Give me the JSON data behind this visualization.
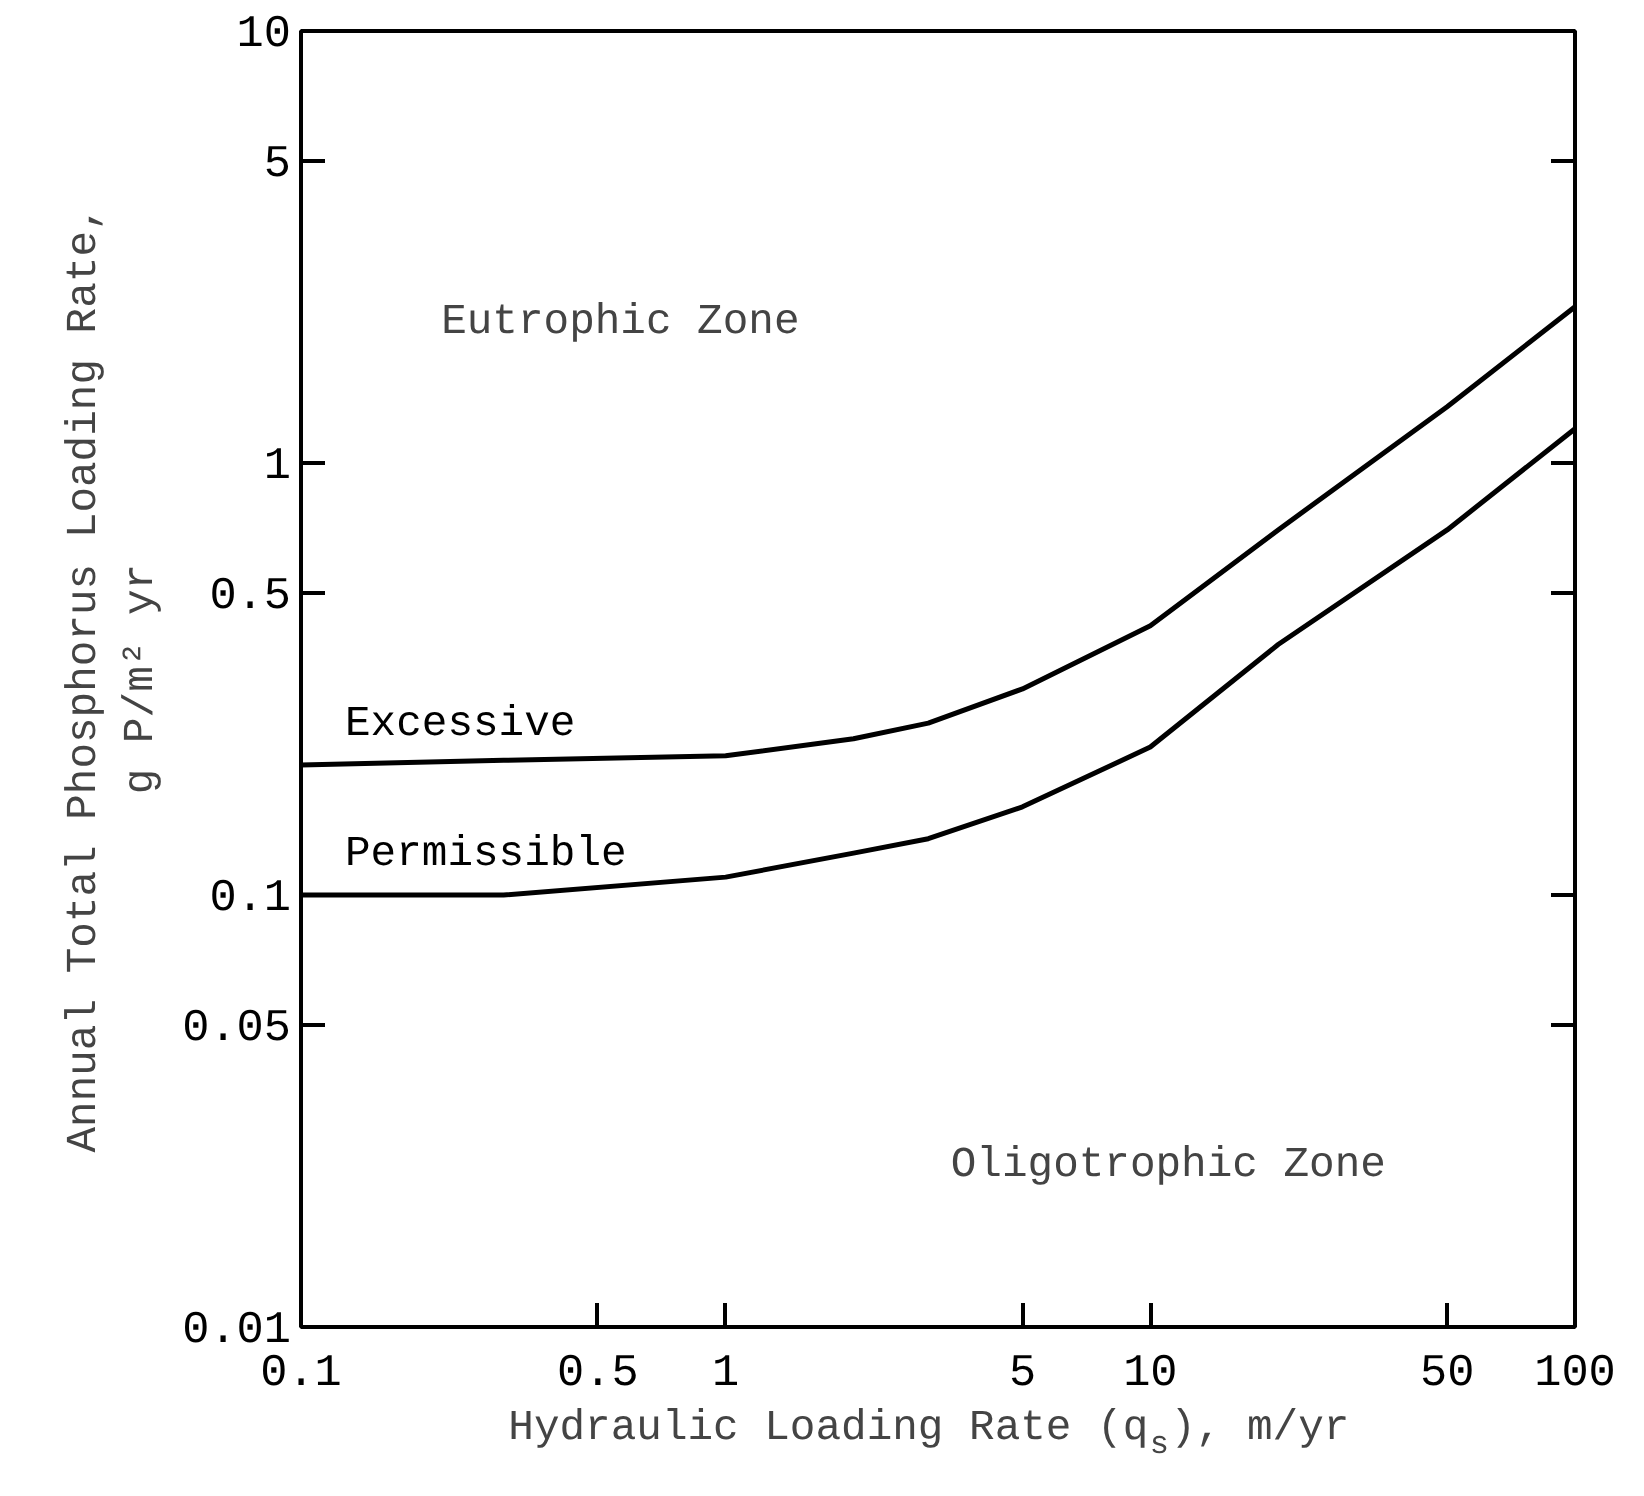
{
  "chart_data": {
    "type": "line",
    "xlabel": "Hydraulic Loading Rate (q$_{s}$), m/yr",
    "ylabel": "Annual Total Phosphorus Loading Rate,\ng P/m² yr",
    "log": "xy",
    "xlim": [
      0.1,
      100
    ],
    "ylim": [
      0.01,
      10
    ],
    "xticks": [
      0.1,
      0.5,
      1,
      5,
      10,
      50,
      100
    ],
    "yticks": [
      0.01,
      0.05,
      0.1,
      0.5,
      1,
      5,
      10
    ],
    "grid": false,
    "marker": "none",
    "line_style": "solid",
    "series": [
      {
        "name": "Excessive",
        "color": "#000000",
        "x": [
          0.1,
          0.3,
          1,
          2,
          3,
          5,
          10,
          20,
          50,
          100
        ],
        "values": [
          0.2,
          0.205,
          0.21,
          0.23,
          0.25,
          0.3,
          0.42,
          0.7,
          1.35,
          2.3
        ]
      },
      {
        "name": "Permissible",
        "color": "#000000",
        "x": [
          0.1,
          0.3,
          1,
          2,
          3,
          5,
          10,
          20,
          50,
          100
        ],
        "values": [
          0.1,
          0.1,
          0.11,
          0.125,
          0.135,
          0.16,
          0.22,
          0.38,
          0.7,
          1.2
        ]
      }
    ],
    "annotations": [
      "Eutrophic Zone",
      "Oligotrophic Zone"
    ]
  }
}
